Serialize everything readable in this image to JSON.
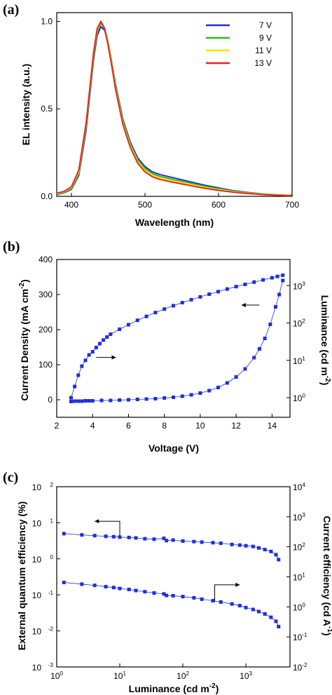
{
  "colors": {
    "blue_marker": "#1f2fd8",
    "frame": "#000000"
  },
  "chart_data": [
    {
      "panel": "(a)",
      "type": "line",
      "xlabel": "Wavelength (nm)",
      "ylabel": "EL intensity (a.u.)",
      "xlim": [
        380,
        700
      ],
      "ylim": [
        0,
        1.05
      ],
      "xticks": [
        400,
        500,
        600,
        700
      ],
      "yticks": [
        0.0,
        0.5,
        1.0
      ],
      "xtick_labels": [
        "400",
        "500",
        "600",
        "700"
      ],
      "ytick_labels": [
        "0.0",
        "0.5",
        "1.0"
      ],
      "legend_position": "top-right",
      "x": [
        380,
        390,
        400,
        410,
        420,
        430,
        435,
        440,
        445,
        450,
        455,
        460,
        470,
        480,
        490,
        500,
        510,
        520,
        540,
        560,
        580,
        600,
        620,
        640,
        660,
        680,
        700
      ],
      "series": [
        {
          "name": "7 V",
          "color": "#1f2fd8",
          "values": [
            0.01,
            0.02,
            0.04,
            0.12,
            0.38,
            0.78,
            0.92,
            0.97,
            0.95,
            0.88,
            0.76,
            0.64,
            0.44,
            0.31,
            0.22,
            0.17,
            0.14,
            0.125,
            0.105,
            0.085,
            0.065,
            0.048,
            0.033,
            0.022,
            0.014,
            0.008,
            0.005
          ]
        },
        {
          "name": "9 V",
          "color": "#22c01e",
          "values": [
            0.012,
            0.022,
            0.045,
            0.13,
            0.4,
            0.8,
            0.94,
            0.99,
            0.96,
            0.88,
            0.76,
            0.63,
            0.43,
            0.3,
            0.21,
            0.16,
            0.13,
            0.115,
            0.095,
            0.077,
            0.058,
            0.043,
            0.03,
            0.02,
            0.013,
            0.008,
            0.005
          ]
        },
        {
          "name": "11 V",
          "color": "#f0e600",
          "values": [
            0.015,
            0.025,
            0.05,
            0.14,
            0.41,
            0.81,
            0.95,
            1.0,
            0.96,
            0.87,
            0.75,
            0.62,
            0.42,
            0.29,
            0.2,
            0.15,
            0.122,
            0.106,
            0.087,
            0.07,
            0.053,
            0.039,
            0.027,
            0.018,
            0.012,
            0.007,
            0.004
          ]
        },
        {
          "name": "13 V",
          "color": "#e8241c",
          "values": [
            0.018,
            0.028,
            0.055,
            0.15,
            0.42,
            0.82,
            0.96,
            1.0,
            0.96,
            0.86,
            0.74,
            0.61,
            0.41,
            0.28,
            0.19,
            0.14,
            0.112,
            0.097,
            0.079,
            0.063,
            0.047,
            0.034,
            0.024,
            0.016,
            0.01,
            0.006,
            0.004
          ]
        }
      ]
    },
    {
      "panel": "(b)",
      "type": "scatter",
      "xlabel": "Voltage (V)",
      "ylabel": "Current Density (mA cm",
      "ylabel_sup": "-2",
      "ylabel_end": ")",
      "y2label": "Luminance (cd m",
      "y2label_sup": "-2",
      "y2label_end": ")",
      "xlim": [
        2,
        15
      ],
      "ylim": [
        -50,
        400
      ],
      "y2lim_log": [
        0.3,
        5000
      ],
      "xticks": [
        2,
        4,
        6,
        8,
        10,
        12,
        14
      ],
      "xtick_labels": [
        "2",
        "4",
        "6",
        "8",
        "10",
        "12",
        "14"
      ],
      "yticks": [
        0,
        100,
        200,
        300,
        400
      ],
      "ytick_labels": [
        "0",
        "100",
        "200",
        "300",
        "400"
      ],
      "y2ticks": [
        1,
        10,
        100,
        1000
      ],
      "y2tick_base": "10",
      "y2tick_exps": [
        "0",
        "1",
        "2",
        "3"
      ],
      "current_density": {
        "x": [
          2.8,
          3.0,
          3.2,
          3.4,
          3.6,
          3.8,
          4.0,
          4.5,
          5.0,
          5.5,
          6.0,
          6.5,
          7.0,
          7.5,
          8.0,
          8.5,
          9.0,
          9.5,
          10.0,
          10.5,
          11.0,
          11.5,
          12.0,
          12.5,
          13.0,
          13.3,
          13.6,
          13.9,
          14.2,
          14.4,
          14.6
        ],
        "y": [
          -5,
          -4,
          -4,
          -4,
          -3,
          -3,
          -3,
          -2,
          -2,
          -1,
          0,
          1,
          2,
          3,
          5,
          7,
          10,
          14,
          19,
          26,
          35,
          48,
          65,
          88,
          120,
          145,
          175,
          215,
          265,
          300,
          340
        ]
      },
      "luminance": {
        "x": [
          2.8,
          3.0,
          3.2,
          3.4,
          3.6,
          3.8,
          4.0,
          4.2,
          4.4,
          4.6,
          4.8,
          5.0,
          5.5,
          6.0,
          6.5,
          7.0,
          7.5,
          8.0,
          8.5,
          9.0,
          9.5,
          10.0,
          10.5,
          11.0,
          11.5,
          12.0,
          12.5,
          13.0,
          13.5,
          14.0,
          14.3,
          14.6
        ],
        "y": [
          1,
          2,
          4,
          7,
          10,
          14,
          17,
          22,
          28,
          35,
          42,
          50,
          68,
          90,
          118,
          150,
          190,
          235,
          290,
          350,
          420,
          500,
          590,
          690,
          810,
          940,
          1080,
          1240,
          1420,
          1620,
          1760,
          1900
        ]
      },
      "arrows": [
        "current-density-left-arrow",
        "luminance-right-arrow"
      ]
    },
    {
      "panel": "(c)",
      "type": "scatter",
      "xlabel": "Luminance (cd m",
      "xlabel_sup": "-2",
      "xlabel_end": ")",
      "ylabel": "External quantum efficiency (%)",
      "y2label": "Current efficiency (cd A",
      "y2label_sup": "-1",
      "y2label_end": ")",
      "xlim_log": [
        1,
        5000
      ],
      "ylim_log": [
        0.001,
        100
      ],
      "y2lim_log": [
        0.01,
        10000
      ],
      "xtick_base": "10",
      "xtick_exps": [
        "0",
        "1",
        "2",
        "3"
      ],
      "xticks": [
        1,
        10,
        100,
        1000
      ],
      "ytick_base": "10",
      "yticks": [
        0.001,
        0.01,
        0.1,
        1,
        10,
        100
      ],
      "ytick_exps": [
        "-3",
        "-2",
        "-1",
        "0",
        "1",
        "2"
      ],
      "y2ticks": [
        0.01,
        0.1,
        1,
        10,
        100,
        1000,
        10000
      ],
      "y2tick_exps": [
        "-2",
        "-1",
        "0",
        "1",
        "2",
        "3",
        "4"
      ],
      "eqe": {
        "x": [
          1.3,
          2.5,
          4,
          6,
          8,
          10,
          14,
          18,
          25,
          35,
          50,
          55,
          70,
          100,
          150,
          200,
          300,
          400,
          600,
          800,
          1000,
          1300,
          1600,
          2000,
          2500,
          3000,
          3300
        ],
        "y": [
          5.0,
          4.6,
          4.4,
          4.2,
          4.1,
          4.0,
          3.9,
          3.8,
          3.6,
          3.5,
          3.7,
          3.2,
          3.3,
          3.1,
          3.0,
          2.9,
          2.8,
          2.7,
          2.5,
          2.4,
          2.3,
          2.2,
          2.0,
          1.8,
          1.6,
          1.3,
          0.95
        ]
      },
      "current_efficiency": {
        "x": [
          1.3,
          2.5,
          4,
          6,
          8,
          10,
          14,
          18,
          25,
          35,
          50,
          55,
          70,
          100,
          150,
          200,
          300,
          400,
          600,
          800,
          1000,
          1300,
          1600,
          2000,
          2500,
          3000,
          3300
        ],
        "y": [
          6.5,
          5.7,
          5.2,
          4.7,
          4.4,
          4.1,
          3.8,
          3.5,
          3.2,
          2.9,
          2.7,
          2.4,
          2.35,
          2.2,
          2.0,
          1.8,
          1.6,
          1.45,
          1.25,
          1.1,
          0.95,
          0.82,
          0.7,
          0.58,
          0.45,
          0.33,
          0.22
        ]
      },
      "arrows": [
        "eqe-left-arrow",
        "current-efficiency-right-arrow"
      ]
    }
  ]
}
